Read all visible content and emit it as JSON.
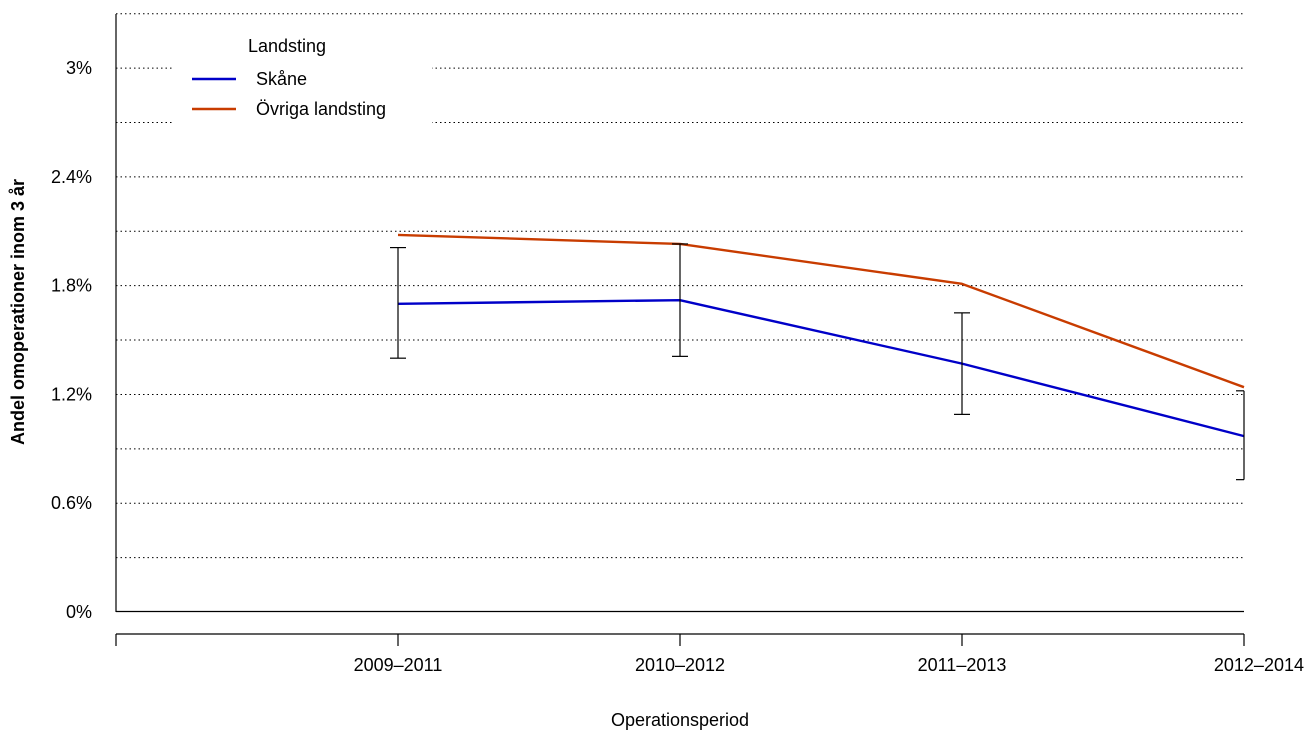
{
  "chart_data": {
    "type": "line",
    "title": "",
    "xlabel": "Operationsperiod",
    "ylabel": "Andel omoperationer inom 3 år",
    "categories": [
      "2009–2011",
      "2010–2012",
      "2011–2013",
      "2012–2014"
    ],
    "y_ticks": [
      0,
      0.6,
      1.2,
      1.8,
      2.4,
      3.0
    ],
    "y_tick_labels": [
      "0%",
      "0.6%",
      "1.2%",
      "1.8%",
      "2.4%",
      "3%"
    ],
    "y_minor_gridlines": [
      0.3,
      0.9,
      1.5,
      2.1,
      2.7,
      3.3
    ],
    "ylim": [
      0,
      3.3
    ],
    "grid": "horizontal dotted",
    "legend": {
      "title": "Landsting",
      "position": "top-left",
      "entries": [
        "Skåne",
        "Övriga landsting"
      ]
    },
    "series": [
      {
        "name": "Skåne",
        "color": "#0000c8",
        "values": [
          1.7,
          1.72,
          1.37,
          0.97
        ],
        "ci_low": [
          1.4,
          1.41,
          1.09,
          0.73
        ],
        "ci_high": [
          2.01,
          2.03,
          1.65,
          1.22
        ]
      },
      {
        "name": "Övriga landsting",
        "color": "#c83c00",
        "values": [
          2.08,
          2.03,
          1.81,
          1.24
        ]
      }
    ]
  }
}
